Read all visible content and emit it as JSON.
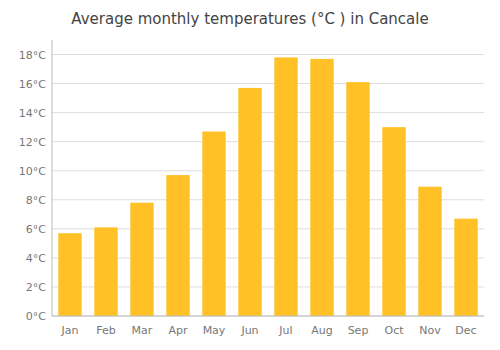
{
  "chart_data": {
    "type": "bar",
    "title": "Average monthly temperatures (°C ) in Cancale",
    "categories": [
      "Jan",
      "Feb",
      "Mar",
      "Apr",
      "May",
      "Jun",
      "Jul",
      "Aug",
      "Sep",
      "Oct",
      "Nov",
      "Dec"
    ],
    "values": [
      5.7,
      6.1,
      7.8,
      9.7,
      12.7,
      15.7,
      17.8,
      17.7,
      16.1,
      13.0,
      8.9,
      6.7
    ],
    "color": "#FFC125",
    "ylim": [
      0,
      19
    ],
    "yticks": [
      {
        "value": 0,
        "label": "0°C"
      },
      {
        "value": 2,
        "label": "2°C"
      },
      {
        "value": 4,
        "label": "4°C"
      },
      {
        "value": 6,
        "label": "6°C"
      },
      {
        "value": 8,
        "label": "8°C"
      },
      {
        "value": 10,
        "label": "10°C"
      },
      {
        "value": 12,
        "label": "12°C"
      },
      {
        "value": 14,
        "label": "14°C"
      },
      {
        "value": 16,
        "label": "16°C"
      },
      {
        "value": 18,
        "label": "18°C"
      }
    ],
    "grid": true
  }
}
